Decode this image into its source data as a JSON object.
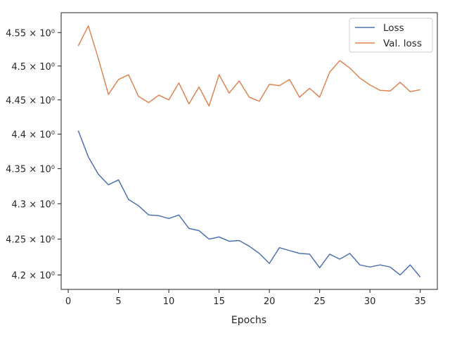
{
  "chart_data": {
    "type": "line",
    "title": "",
    "xlabel": "Epochs",
    "ylabel": "",
    "xlim": [
      -0.7,
      36.7
    ],
    "ylim": [
      4.18,
      4.58
    ],
    "xticks": [
      0,
      5,
      10,
      15,
      20,
      25,
      30,
      35
    ],
    "xtick_labels": [
      "0",
      "5",
      "10",
      "15",
      "20",
      "25",
      "30",
      "35"
    ],
    "yticks": [
      4.2,
      4.25,
      4.3,
      4.35,
      4.4,
      4.45,
      4.5,
      4.55
    ],
    "ytick_labels": [
      "4.2 × 10⁰",
      "4.25 × 10⁰",
      "4.3 × 10⁰",
      "4.35 × 10⁰",
      "4.4 × 10⁰",
      "4.45 × 10⁰",
      "4.5 × 10⁰",
      "4.55 × 10⁰"
    ],
    "yscale": "log",
    "grid": false,
    "legend_position": "top-right",
    "x": [
      1,
      2,
      3,
      4,
      5,
      6,
      7,
      8,
      9,
      10,
      11,
      12,
      13,
      14,
      15,
      16,
      17,
      18,
      19,
      20,
      21,
      22,
      23,
      24,
      25,
      26,
      27,
      28,
      29,
      30,
      31,
      32,
      33,
      34,
      35
    ],
    "series": [
      {
        "name": "Loss",
        "color": "#4c72b0",
        "values": [
          4.405,
          4.367,
          4.342,
          4.327,
          4.334,
          4.306,
          4.297,
          4.284,
          4.283,
          4.279,
          4.284,
          4.265,
          4.262,
          4.25,
          4.253,
          4.247,
          4.248,
          4.24,
          4.23,
          4.216,
          4.238,
          4.234,
          4.23,
          4.229,
          4.21,
          4.229,
          4.222,
          4.23,
          4.214,
          4.211,
          4.214,
          4.211,
          4.2,
          4.214,
          4.197
        ]
      },
      {
        "name": "Val. loss",
        "color": "#dd8452",
        "values": [
          4.53,
          4.56,
          4.511,
          4.458,
          4.48,
          4.487,
          4.455,
          4.446,
          4.457,
          4.45,
          4.475,
          4.444,
          4.469,
          4.441,
          4.487,
          4.46,
          4.478,
          4.454,
          4.448,
          4.473,
          4.471,
          4.48,
          4.454,
          4.467,
          4.454,
          4.491,
          4.508,
          4.497,
          4.482,
          4.472,
          4.464,
          4.463,
          4.476,
          4.462,
          4.465
        ]
      }
    ]
  }
}
